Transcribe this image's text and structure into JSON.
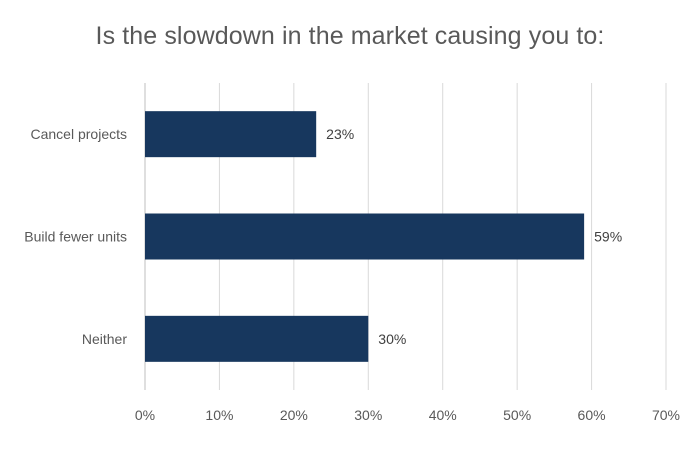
{
  "chart_data": {
    "type": "bar",
    "orientation": "horizontal",
    "title": "Is the slowdown in the market causing you to:",
    "categories": [
      "Cancel projects",
      "Build fewer units",
      "Neither"
    ],
    "values": [
      23,
      59,
      30
    ],
    "value_labels": [
      "23%",
      "59%",
      "30%"
    ],
    "xlim": [
      0,
      70
    ],
    "x_ticks": [
      0,
      10,
      20,
      30,
      40,
      50,
      60,
      70
    ],
    "x_tick_labels": [
      "0%",
      "10%",
      "20%",
      "30%",
      "40%",
      "50%",
      "60%",
      "70%"
    ],
    "xlabel": "",
    "ylabel": "",
    "grid": "vertical",
    "legend": "none",
    "bar_color": "#17375e",
    "grid_color": "#d9d9d9"
  }
}
